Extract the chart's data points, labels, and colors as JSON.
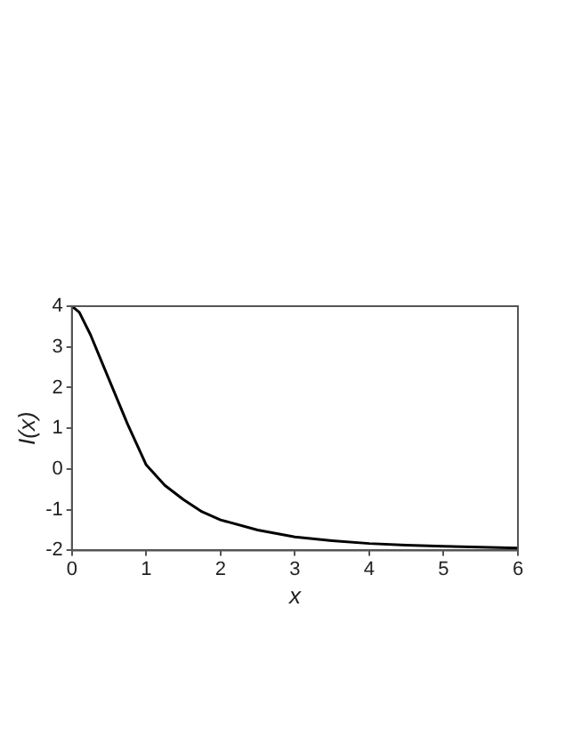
{
  "chart_data": {
    "type": "line",
    "xlabel": "x",
    "ylabel": "I(x)",
    "x": [
      0,
      0.1,
      0.25,
      0.5,
      0.75,
      1,
      1.25,
      1.5,
      1.75,
      2,
      2.5,
      3,
      3.5,
      4,
      4.5,
      5,
      5.5,
      6
    ],
    "series": [
      {
        "color": "#000000",
        "values": [
          4,
          3.85,
          3.3,
          2.2,
          1.1,
          0.1,
          -0.4,
          -0.75,
          -1.05,
          -1.25,
          -1.5,
          -1.67,
          -1.76,
          -1.83,
          -1.87,
          -1.9,
          -1.92,
          -1.94
        ]
      }
    ],
    "xlim": [
      0,
      6
    ],
    "xticks": [
      0,
      1,
      2,
      3,
      4,
      5,
      6
    ],
    "ylim": [
      -2,
      4
    ],
    "yticks": [
      -2,
      -1,
      0,
      1,
      2,
      3,
      4
    ],
    "grid": false,
    "legend": false,
    "marker": "none",
    "line_style": "solid"
  }
}
